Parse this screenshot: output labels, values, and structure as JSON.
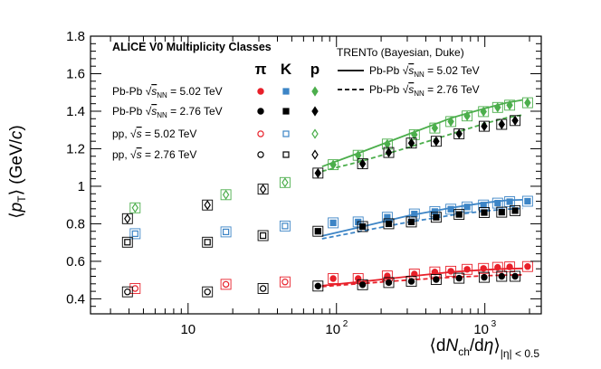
{
  "chart_data": {
    "type": "scatter",
    "xscale": "log",
    "xlim": [
      2.2,
      2400
    ],
    "ylim": [
      0.32,
      1.8
    ],
    "xticks": [
      {
        "value": 10,
        "label": "10"
      },
      {
        "value": 100,
        "label": "10",
        "exp": "2"
      },
      {
        "value": 1000,
        "label": "10",
        "exp": "3"
      }
    ],
    "yticks": [
      {
        "value": 0.4,
        "label": "0.4"
      },
      {
        "value": 0.6,
        "label": "0.6"
      },
      {
        "value": 0.8,
        "label": "0.8"
      },
      {
        "value": 1.0,
        "label": "1"
      },
      {
        "value": 1.2,
        "label": "1.2"
      },
      {
        "value": 1.4,
        "label": "1.4"
      },
      {
        "value": 1.6,
        "label": "1.6"
      },
      {
        "value": 1.8,
        "label": "1.8"
      }
    ],
    "ylabel_parts": [
      "⟨",
      "p",
      "T",
      "⟩ (GeV/",
      "c",
      ")"
    ],
    "xlabel_parts": [
      "⟨d",
      "N",
      "ch",
      "/d",
      "η",
      "⟩",
      "|η| < 0.5"
    ],
    "legend": {
      "title": "ALICE V0 Multiplicity Classes",
      "species": [
        "π",
        "K",
        "p"
      ],
      "rows": [
        {
          "text": "Pb-Pb √s_NN = 5.02 TeV",
          "prefix": "Pb-Pb ",
          "root": "s",
          "root_sub": "NN",
          "suffix": " = 5.02 TeV"
        },
        {
          "text": "Pb-Pb √s_NN = 2.76 TeV",
          "prefix": "Pb-Pb ",
          "root": "s",
          "root_sub": "NN",
          "suffix": " = 2.76 TeV"
        },
        {
          "text": "pp, √s = 5.02 TeV",
          "prefix": "pp, ",
          "root": "s",
          "root_sub": "",
          "suffix": " = 5.02 TeV"
        },
        {
          "text": "pp, √s = 2.76 TeV",
          "prefix": "pp, ",
          "root": "s",
          "root_sub": "",
          "suffix": " = 2.76 TeV"
        }
      ],
      "model_title": "TRENTo (Bayesian, Duke)",
      "model_rows": [
        {
          "text": "Pb-Pb √s_NN = 5.02 TeV",
          "prefix": "Pb-Pb ",
          "root": "s",
          "root_sub": "NN",
          "suffix": " = 5.02 TeV",
          "style": "solid"
        },
        {
          "text": "Pb-Pb √s_NN = 2.76 TeV",
          "prefix": "Pb-Pb ",
          "root": "s",
          "root_sub": "NN",
          "suffix": " = 2.76 TeV",
          "style": "dashed"
        }
      ]
    },
    "colors": {
      "pion": "#e8202a",
      "kaon": "#3d85c6",
      "proton": "#4cae4c",
      "black": "#000000"
    },
    "series": [
      {
        "name": "π Pb-Pb 5.02 TeV",
        "species": "pion",
        "style": "filled",
        "points": [
          [
            1940,
            0.572
          ],
          [
            1470,
            0.57
          ],
          [
            1220,
            0.568
          ],
          [
            980,
            0.562
          ],
          [
            760,
            0.557
          ],
          [
            590,
            0.547
          ],
          [
            460,
            0.543
          ],
          [
            335,
            0.532
          ],
          [
            220,
            0.522
          ],
          [
            140,
            0.508
          ],
          [
            95,
            0.508
          ]
        ]
      },
      {
        "name": "K Pb-Pb 5.02 TeV",
        "species": "kaon",
        "style": "filled",
        "points": [
          [
            1940,
            0.92
          ],
          [
            1470,
            0.918
          ],
          [
            1220,
            0.91
          ],
          [
            980,
            0.9
          ],
          [
            760,
            0.89
          ],
          [
            590,
            0.878
          ],
          [
            460,
            0.865
          ],
          [
            335,
            0.852
          ],
          [
            220,
            0.835
          ],
          [
            140,
            0.81
          ],
          [
            95,
            0.805
          ]
        ]
      },
      {
        "name": "p Pb-Pb 5.02 TeV",
        "species": "proton",
        "style": "filled",
        "points": [
          [
            1940,
            1.445
          ],
          [
            1470,
            1.432
          ],
          [
            1220,
            1.42
          ],
          [
            980,
            1.398
          ],
          [
            760,
            1.375
          ],
          [
            590,
            1.345
          ],
          [
            460,
            1.31
          ],
          [
            335,
            1.275
          ],
          [
            220,
            1.225
          ],
          [
            140,
            1.165
          ],
          [
            95,
            1.115
          ]
        ]
      },
      {
        "name": "π Pb-Pb 2.76 TeV",
        "species": "black",
        "style": "filled",
        "points": [
          [
            1600,
            0.52
          ],
          [
            1300,
            0.52
          ],
          [
            990,
            0.515
          ],
          [
            670,
            0.51
          ],
          [
            470,
            0.503
          ],
          [
            320,
            0.493
          ],
          [
            225,
            0.487
          ],
          [
            150,
            0.475
          ],
          [
            75,
            0.468
          ]
        ]
      },
      {
        "name": "K Pb-Pb 2.76 TeV",
        "species": "black",
        "style": "filled",
        "points": [
          [
            1600,
            0.87
          ],
          [
            1300,
            0.862
          ],
          [
            990,
            0.86
          ],
          [
            670,
            0.85
          ],
          [
            470,
            0.835
          ],
          [
            320,
            0.81
          ],
          [
            225,
            0.8
          ],
          [
            150,
            0.785
          ],
          [
            75,
            0.76
          ]
        ]
      },
      {
        "name": "p Pb-Pb 2.76 TeV",
        "species": "black",
        "style": "filled",
        "points": [
          [
            1600,
            1.35
          ],
          [
            1300,
            1.33
          ],
          [
            990,
            1.32
          ],
          [
            670,
            1.28
          ],
          [
            470,
            1.24
          ],
          [
            320,
            1.23
          ],
          [
            225,
            1.18
          ],
          [
            150,
            1.12
          ],
          [
            75,
            1.07
          ]
        ]
      },
      {
        "name": "π pp 5.02 TeV",
        "species": "pion",
        "style": "open",
        "points": [
          [
            45,
            0.49
          ],
          [
            18,
            0.477
          ],
          [
            4.4,
            0.455
          ]
        ]
      },
      {
        "name": "K pp 5.02 TeV",
        "species": "kaon",
        "style": "open",
        "points": [
          [
            45,
            0.788
          ],
          [
            18,
            0.757
          ],
          [
            4.4,
            0.747
          ]
        ]
      },
      {
        "name": "p pp 5.02 TeV",
        "species": "proton",
        "style": "open",
        "points": [
          [
            45,
            1.02
          ],
          [
            18,
            0.955
          ],
          [
            4.4,
            0.885
          ]
        ]
      },
      {
        "name": "π pp 2.76 TeV",
        "species": "black",
        "style": "open",
        "points": [
          [
            32,
            0.455
          ],
          [
            13.5,
            0.437
          ],
          [
            3.9,
            0.437
          ]
        ]
      },
      {
        "name": "K pp 2.76 TeV",
        "species": "black",
        "style": "open",
        "points": [
          [
            32,
            0.737
          ],
          [
            13.5,
            0.702
          ],
          [
            3.9,
            0.702
          ]
        ]
      },
      {
        "name": "p pp 2.76 TeV",
        "species": "black",
        "style": "open",
        "points": [
          [
            32,
            0.985
          ],
          [
            13.5,
            0.9
          ],
          [
            3.9,
            0.827
          ]
        ]
      }
    ],
    "model_curves": [
      {
        "name": "π TRENTo 5.02 TeV",
        "species": "pion",
        "style": "solid",
        "points": [
          [
            80,
            0.47
          ],
          [
            150,
            0.492
          ],
          [
            300,
            0.518
          ],
          [
            600,
            0.543
          ],
          [
            1000,
            0.555
          ],
          [
            1400,
            0.56
          ],
          [
            1800,
            0.562
          ]
        ]
      },
      {
        "name": "π TRENTo 2.76 TeV",
        "species": "pion",
        "style": "dashed",
        "points": [
          [
            80,
            0.465
          ],
          [
            150,
            0.482
          ],
          [
            300,
            0.5
          ],
          [
            600,
            0.515
          ],
          [
            1000,
            0.523
          ],
          [
            1400,
            0.527
          ],
          [
            1800,
            0.528
          ]
        ]
      },
      {
        "name": "K TRENTo 5.02 TeV",
        "species": "kaon",
        "style": "solid",
        "points": [
          [
            80,
            0.735
          ],
          [
            150,
            0.785
          ],
          [
            300,
            0.842
          ],
          [
            600,
            0.886
          ],
          [
            1000,
            0.912
          ],
          [
            1400,
            0.925
          ],
          [
            1800,
            0.928
          ]
        ]
      },
      {
        "name": "K TRENTo 2.76 TeV",
        "species": "kaon",
        "style": "dashed",
        "points": [
          [
            80,
            0.72
          ],
          [
            150,
            0.762
          ],
          [
            300,
            0.808
          ],
          [
            600,
            0.846
          ],
          [
            1000,
            0.868
          ],
          [
            1400,
            0.878
          ],
          [
            1800,
            0.882
          ]
        ]
      },
      {
        "name": "p TRENTo 5.02 TeV",
        "species": "proton",
        "style": "solid",
        "points": [
          [
            80,
            1.105
          ],
          [
            150,
            1.185
          ],
          [
            300,
            1.275
          ],
          [
            600,
            1.365
          ],
          [
            1000,
            1.415
          ],
          [
            1400,
            1.445
          ],
          [
            1800,
            1.46
          ]
        ]
      },
      {
        "name": "p TRENTo 2.76 TeV",
        "species": "proton",
        "style": "dashed",
        "points": [
          [
            80,
            1.08
          ],
          [
            150,
            1.135
          ],
          [
            300,
            1.205
          ],
          [
            600,
            1.28
          ],
          [
            1000,
            1.335
          ],
          [
            1400,
            1.365
          ],
          [
            1800,
            1.38
          ]
        ]
      }
    ]
  }
}
